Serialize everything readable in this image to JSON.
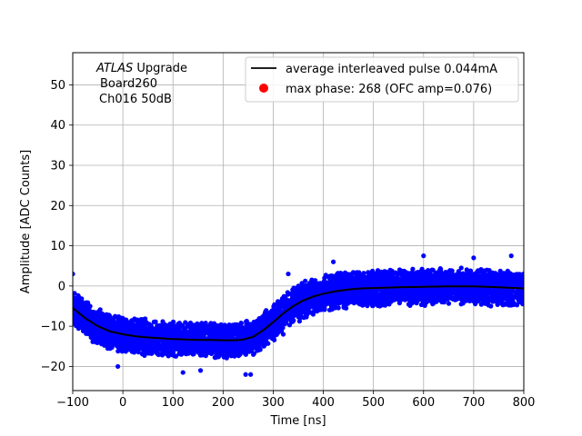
{
  "chart_data": {
    "type": "scatter",
    "title": "",
    "xlabel": "Time [ns]",
    "ylabel": "Amplitude [ADC Counts]",
    "xlim": [
      -100,
      800
    ],
    "ylim": [
      -26,
      58
    ],
    "xticks": [
      -100,
      0,
      100,
      200,
      300,
      400,
      500,
      600,
      700,
      800
    ],
    "yticks": [
      -20,
      -10,
      0,
      10,
      20,
      30,
      40,
      50
    ],
    "grid": true,
    "legend_position": "top-right",
    "annotation": {
      "atlas": "ATLAS",
      "upgrade": " Upgrade",
      "board": "Board260",
      "channel": "Ch016 50dB"
    },
    "series": [
      {
        "name": "average interleaved pulse 0.044mA",
        "kind": "line",
        "color": "#000000",
        "x": [
          -100,
          -75,
          -50,
          -25,
          0,
          25,
          50,
          75,
          100,
          125,
          150,
          175,
          200,
          225,
          240,
          260,
          280,
          300,
          320,
          340,
          360,
          380,
          400,
          425,
          450,
          475,
          500,
          550,
          600,
          650,
          700,
          750,
          800
        ],
        "y": [
          -5.5,
          -8,
          -10,
          -11.3,
          -12,
          -12.5,
          -12.8,
          -13,
          -13.2,
          -13.3,
          -13.4,
          -13.4,
          -13.5,
          -13.5,
          -13.3,
          -12.6,
          -11,
          -9,
          -6.8,
          -5,
          -3.6,
          -2.6,
          -1.9,
          -1.3,
          -0.9,
          -0.6,
          -0.5,
          -0.3,
          -0.2,
          -0.1,
          -0.1,
          -0.3,
          -0.6
        ]
      },
      {
        "name": "max phase: 268 (OFC amp=0.076)",
        "kind": "scatter",
        "color": "#ff0000",
        "x": [],
        "y": []
      },
      {
        "name": "",
        "kind": "scatter-band",
        "color": "#0000ff",
        "note": "dense blue samples spread around the average pulse",
        "spread": 4.8,
        "outliers": [
          {
            "x": -100,
            "y": 3
          },
          {
            "x": -10,
            "y": -20
          },
          {
            "x": 120,
            "y": -21.5
          },
          {
            "x": 155,
            "y": -21
          },
          {
            "x": 245,
            "y": -22
          },
          {
            "x": 255,
            "y": -22
          },
          {
            "x": 320,
            "y": -12
          },
          {
            "x": 330,
            "y": 3
          },
          {
            "x": 420,
            "y": 6
          },
          {
            "x": 600,
            "y": 7.5
          },
          {
            "x": 700,
            "y": 7
          },
          {
            "x": 775,
            "y": 7.5
          }
        ]
      }
    ]
  }
}
